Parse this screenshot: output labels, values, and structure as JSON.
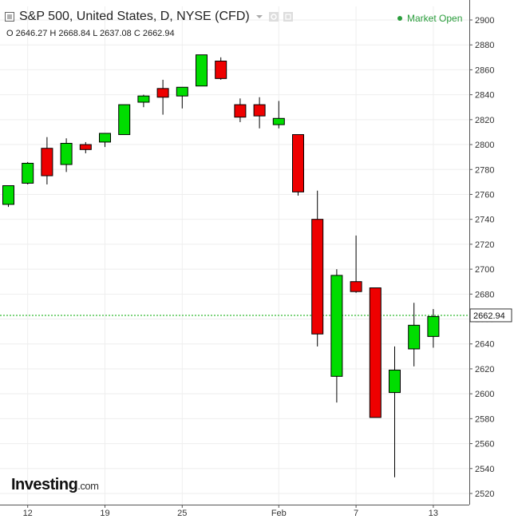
{
  "header": {
    "title": "S&P 500, United States, D, NYSE (CFD)",
    "ohlc_text": "O 2646.27  H 2668.84  L 2637.08  C 2662.94",
    "market_status": "Market Open",
    "icons": [
      "collapse-square-icon",
      "dropdown-triangle-icon",
      "settings-gear-icon",
      "maximize-icon"
    ]
  },
  "logo": {
    "name": "Investing",
    "suffix": ".com"
  },
  "colors": {
    "up": "#00dd00",
    "down": "#ee0000",
    "grid": "#eeeeee",
    "last_price_line": "#00aa00",
    "market_open": "#2a9d3c"
  },
  "chart_data": {
    "type": "candlestick",
    "ylim": [
      2520,
      2900
    ],
    "yticks": [
      2520,
      2540,
      2560,
      2580,
      2600,
      2620,
      2640,
      2660,
      2680,
      2700,
      2720,
      2740,
      2760,
      2780,
      2800,
      2820,
      2840,
      2860,
      2880,
      2900
    ],
    "x_ticks": [
      {
        "label": "12",
        "index": 1
      },
      {
        "label": "19",
        "index": 5
      },
      {
        "label": "25",
        "index": 9
      },
      {
        "label": "Feb",
        "index": 14
      },
      {
        "label": "7",
        "index": 18
      },
      {
        "label": "13",
        "index": 22
      }
    ],
    "last_price": 2662.94,
    "last_price_label": "2662.94",
    "candles": [
      {
        "o": 2752,
        "h": 2767,
        "l": 2750,
        "c": 2767
      },
      {
        "o": 2769,
        "h": 2786,
        "l": 2768,
        "c": 2785
      },
      {
        "o": 2797,
        "h": 2806,
        "l": 2768,
        "c": 2775
      },
      {
        "o": 2784,
        "h": 2805,
        "l": 2778,
        "c": 2801
      },
      {
        "o": 2800,
        "h": 2802,
        "l": 2793,
        "c": 2796
      },
      {
        "o": 2802,
        "h": 2809,
        "l": 2798,
        "c": 2809
      },
      {
        "o": 2808,
        "h": 2832,
        "l": 2808,
        "c": 2832
      },
      {
        "o": 2834,
        "h": 2840,
        "l": 2830,
        "c": 2839
      },
      {
        "o": 2845,
        "h": 2852,
        "l": 2824,
        "c": 2838
      },
      {
        "o": 2839,
        "h": 2846,
        "l": 2829,
        "c": 2846
      },
      {
        "o": 2847,
        "h": 2872,
        "l": 2847,
        "c": 2872
      },
      {
        "o": 2867,
        "h": 2870,
        "l": 2852,
        "c": 2853
      },
      {
        "o": 2832,
        "h": 2837,
        "l": 2818,
        "c": 2822
      },
      {
        "o": 2832,
        "h": 2838,
        "l": 2813,
        "c": 2823
      },
      {
        "o": 2816,
        "h": 2835,
        "l": 2813,
        "c": 2821
      },
      {
        "o": 2808,
        "h": 2808,
        "l": 2759,
        "c": 2762
      },
      {
        "o": 2740,
        "h": 2763,
        "l": 2638,
        "c": 2648
      },
      {
        "o": 2614,
        "h": 2700,
        "l": 2593,
        "c": 2695
      },
      {
        "o": 2690,
        "h": 2727,
        "l": 2681,
        "c": 2682
      },
      {
        "o": 2685,
        "h": 2685,
        "l": 2581,
        "c": 2581
      },
      {
        "o": 2601,
        "h": 2638,
        "l": 2533,
        "c": 2619
      },
      {
        "o": 2636,
        "h": 2673,
        "l": 2622,
        "c": 2655
      },
      {
        "o": 2646,
        "h": 2668,
        "l": 2637,
        "c": 2662
      }
    ]
  }
}
